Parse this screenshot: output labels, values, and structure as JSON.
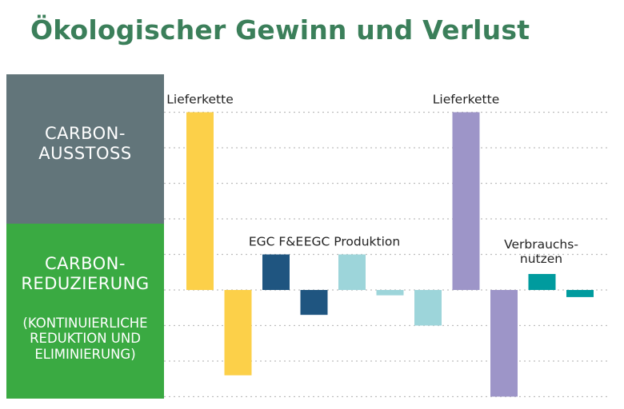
{
  "title": "Ökologischer Gewinn und Verlust",
  "panels": {
    "top": {
      "line1": "CARBON-",
      "line2": "AUSSTOSS"
    },
    "bottom": {
      "line1": "CARBON-",
      "line2": "REDUZIERUNG",
      "note1": "(KONTINUIERLICHE",
      "note2": "REDUKTION UND",
      "note3": "ELIMINIERUNG)"
    }
  },
  "chart_data": {
    "type": "bar",
    "title": "Ökologischer Gewinn und Verlust",
    "ylim": [
      -3,
      5
    ],
    "grid": true,
    "bars": [
      {
        "value": 5.0,
        "color": "#fcd049"
      },
      {
        "value": -2.4,
        "color": "#fcd049"
      },
      {
        "value": 1.0,
        "color": "#1f5580"
      },
      {
        "value": -0.7,
        "color": "#1f5580"
      },
      {
        "value": 1.0,
        "color": "#9dd5da"
      },
      {
        "value": -0.15,
        "color": "#9dd5da"
      },
      {
        "value": -1.0,
        "color": "#9dd5da"
      },
      {
        "value": 5.0,
        "color": "#9d95c8"
      },
      {
        "value": -3.0,
        "color": "#9d95c8"
      },
      {
        "value": 0.45,
        "color": "#009b9e"
      },
      {
        "value": -0.2,
        "color": "#009b9e"
      }
    ],
    "annotations": [
      {
        "text": "Lieferkette",
        "bar": 0
      },
      {
        "text": "EGC F&E",
        "bar": 2
      },
      {
        "text": "EGC Produktion",
        "bar": 4
      },
      {
        "text": "Lieferkette",
        "bar": 7
      },
      {
        "text": "Verbrauchs-",
        "bar": 9,
        "line": 1
      },
      {
        "text": "nutzen",
        "bar": 9,
        "line": 2
      }
    ]
  }
}
